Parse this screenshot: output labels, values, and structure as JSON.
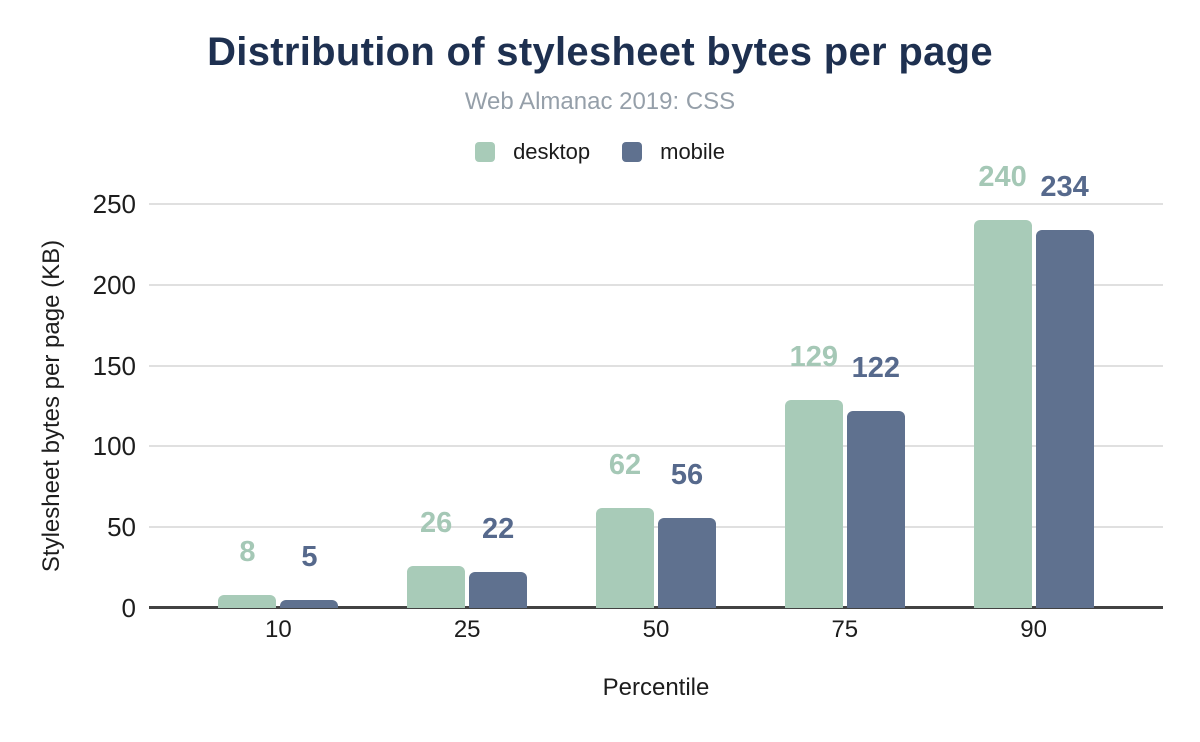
{
  "chart_data": {
    "type": "bar",
    "title": "Distribution of stylesheet bytes per page",
    "subtitle": "Web Almanac 2019: CSS",
    "xlabel": "Percentile",
    "ylabel": "Stylesheet bytes per page (KB)",
    "categories": [
      "10",
      "25",
      "50",
      "75",
      "90"
    ],
    "series": [
      {
        "name": "desktop",
        "color": "#a8cbb8",
        "label_color": "#a5c8b6",
        "values": [
          8,
          26,
          62,
          129,
          240
        ]
      },
      {
        "name": "mobile",
        "color": "#5f718f",
        "label_color": "#56698c",
        "values": [
          5,
          22,
          56,
          122,
          234
        ]
      }
    ],
    "ylim": [
      0,
      250
    ],
    "yticks": [
      0,
      50,
      100,
      150,
      200,
      250
    ],
    "grid": true,
    "legend_position": "top"
  },
  "theme": {
    "title_color": "#1e3050",
    "subtitle_color": "#959fa9",
    "gridline_color": "#e0e0e0",
    "axis_color": "#424242"
  }
}
